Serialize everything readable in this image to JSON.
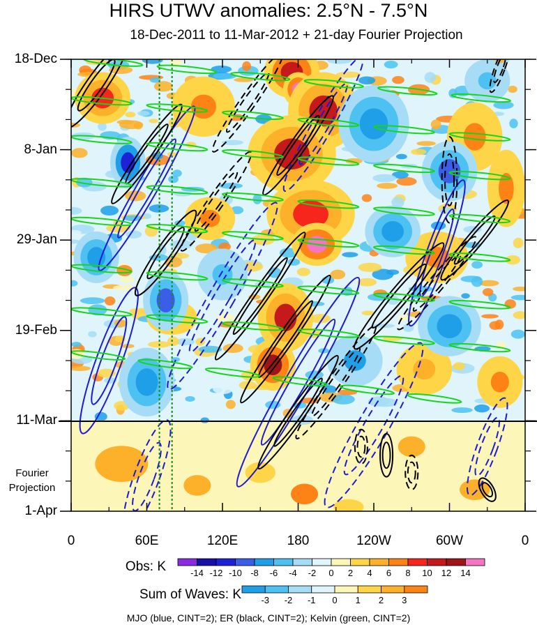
{
  "title": "HIRS UTWV anomalies: 2.5°N - 7.5°N",
  "subtitle": "18-Dec-2011 to 11-Mar-2012 + 21-day Fourier Projection",
  "chart_data": {
    "type": "heatmap",
    "description_axes": "Hovmoller diagram: longitude (x) vs time (y, downward)",
    "x_ticks": [
      {
        "lon": 0,
        "label": "0"
      },
      {
        "lon": 60,
        "label": "60E"
      },
      {
        "lon": 120,
        "label": "120E"
      },
      {
        "lon": 180,
        "label": "180"
      },
      {
        "lon": 240,
        "label": "120W"
      },
      {
        "lon": 300,
        "label": "60W"
      },
      {
        "lon": 360,
        "label": "0"
      }
    ],
    "xlim": [
      0,
      360
    ],
    "y_ticks": [
      {
        "day": 0,
        "label": "18-Dec"
      },
      {
        "day": 21,
        "label": "8-Jan"
      },
      {
        "day": 42,
        "label": "29-Jan"
      },
      {
        "day": 63,
        "label": "19-Feb"
      },
      {
        "day": 84,
        "label": "11-Mar"
      },
      {
        "day": 105,
        "label": "1-Apr"
      }
    ],
    "ylim_days": [
      0,
      105
    ],
    "projection_start_day": 84,
    "projection_label": "Fourier Projection",
    "reference_lon_lines": [
      70,
      80
    ],
    "obs_colorbar": {
      "label": "Obs: K",
      "levels": [
        -14,
        -12,
        -10,
        -8,
        -6,
        -4,
        -2,
        0,
        2,
        4,
        6,
        8,
        10,
        12,
        14
      ],
      "colors": [
        "#8a2be2",
        "#1a0da8",
        "#1e22d6",
        "#3a5ee8",
        "#1e9fe8",
        "#4dc2f2",
        "#a6dcf6",
        "#dff4fb",
        "#fdf6b9",
        "#fed546",
        "#fdb02a",
        "#fe8316",
        "#f7261c",
        "#c5191c",
        "#9e1417",
        "#f575c0"
      ]
    },
    "waves_colorbar": {
      "label": "Sum of Waves: K",
      "levels": [
        -3,
        -2,
        -1,
        0,
        1,
        2,
        3
      ],
      "colors": [
        "#1e9fe8",
        "#4dc2f2",
        "#a6dcf6",
        "#dff4fb",
        "#fdf6b9",
        "#fed546",
        "#fdb02a",
        "#fe8316"
      ]
    },
    "footer_note": "MJO (blue, CINT=2); ER (black, CINT=2); Kelvin (green, CINT=2)",
    "contours": {
      "mjo": {
        "color": "#1b1bd6",
        "cint": 2
      },
      "er": {
        "color": "#000000",
        "cint": 2
      },
      "kelvin": {
        "color": "#17d617",
        "cint": 2
      }
    },
    "blobs_obs": [
      {
        "lon": 175,
        "day": 3,
        "rx": 22,
        "ry": 6,
        "v": 11
      },
      {
        "lon": 180,
        "day": 7,
        "rx": 12,
        "ry": 4,
        "v": 14
      },
      {
        "lon": 200,
        "day": 12,
        "rx": 28,
        "ry": 9,
        "v": 10
      },
      {
        "lon": 175,
        "day": 22,
        "rx": 35,
        "ry": 9,
        "v": 10
      },
      {
        "lon": 190,
        "day": 36,
        "rx": 35,
        "ry": 8,
        "v": 9
      },
      {
        "lon": 195,
        "day": 43,
        "rx": 20,
        "ry": 5,
        "v": 14
      },
      {
        "lon": 170,
        "day": 60,
        "rx": 22,
        "ry": 8,
        "v": 10
      },
      {
        "lon": 160,
        "day": 71,
        "rx": 18,
        "ry": 6,
        "v": 13
      },
      {
        "lon": 25,
        "day": 9,
        "rx": 22,
        "ry": 6,
        "v": 8
      },
      {
        "lon": 105,
        "day": 11,
        "rx": 25,
        "ry": 7,
        "v": 7
      },
      {
        "lon": 320,
        "day": 18,
        "rx": 22,
        "ry": 8,
        "v": 6
      },
      {
        "lon": 345,
        "day": 30,
        "rx": 15,
        "ry": 9,
        "v": 6
      },
      {
        "lon": 290,
        "day": 46,
        "rx": 25,
        "ry": 6,
        "v": 6
      },
      {
        "lon": 110,
        "day": 37,
        "rx": 20,
        "ry": 5,
        "v": 6
      },
      {
        "lon": 80,
        "day": 60,
        "rx": 20,
        "ry": 4,
        "v": 5
      },
      {
        "lon": 280,
        "day": 72,
        "rx": 22,
        "ry": 6,
        "v": 5
      },
      {
        "lon": 340,
        "day": 75,
        "rx": 18,
        "ry": 6,
        "v": 6
      },
      {
        "lon": 45,
        "day": 24,
        "rx": 14,
        "ry": 6,
        "v": -12
      },
      {
        "lon": 75,
        "day": 56,
        "rx": 18,
        "ry": 7,
        "v": -10
      },
      {
        "lon": 60,
        "day": 75,
        "rx": 22,
        "ry": 8,
        "v": -8
      },
      {
        "lon": 240,
        "day": 15,
        "rx": 28,
        "ry": 9,
        "v": -8
      },
      {
        "lon": 300,
        "day": 26,
        "rx": 22,
        "ry": 7,
        "v": -10
      },
      {
        "lon": 255,
        "day": 40,
        "rx": 22,
        "ry": 6,
        "v": -8
      },
      {
        "lon": 20,
        "day": 46,
        "rx": 18,
        "ry": 6,
        "v": -8
      },
      {
        "lon": 300,
        "day": 62,
        "rx": 25,
        "ry": 7,
        "v": -8
      },
      {
        "lon": 225,
        "day": 70,
        "rx": 22,
        "ry": 6,
        "v": -7
      },
      {
        "lon": 120,
        "day": 50,
        "rx": 20,
        "ry": 6,
        "v": -6
      },
      {
        "lon": 330,
        "day": 5,
        "rx": 18,
        "ry": 5,
        "v": -6
      }
    ],
    "blobs_waves": [
      {
        "lon": 40,
        "day": 94,
        "rx": 35,
        "ry": 7,
        "v": 2
      },
      {
        "lon": 100,
        "day": 99,
        "rx": 18,
        "ry": 4,
        "v": 2
      },
      {
        "lon": 185,
        "day": 101,
        "rx": 18,
        "ry": 4,
        "v": 3
      },
      {
        "lon": 270,
        "day": 90,
        "rx": 18,
        "ry": 4,
        "v": 2
      },
      {
        "lon": 320,
        "day": 100,
        "rx": 20,
        "ry": 4,
        "v": 2
      },
      {
        "lon": 150,
        "day": 96,
        "rx": 20,
        "ry": 4,
        "v": 1
      },
      {
        "lon": 220,
        "day": 104,
        "rx": 20,
        "ry": 3,
        "v": 1
      }
    ],
    "kelvin_lines": [
      {
        "lon0": 10,
        "day0": 0,
        "lon1": 360,
        "day1": 10
      },
      {
        "lon0": 0,
        "day0": 9,
        "lon1": 360,
        "day1": 19
      },
      {
        "lon0": 0,
        "day0": 18,
        "lon1": 360,
        "day1": 28
      },
      {
        "lon0": 0,
        "day0": 28,
        "lon1": 360,
        "day1": 38
      },
      {
        "lon0": 0,
        "day0": 37,
        "lon1": 360,
        "day1": 47
      },
      {
        "lon0": 0,
        "day0": 48,
        "lon1": 360,
        "day1": 58
      },
      {
        "lon0": 0,
        "day0": 58,
        "lon1": 360,
        "day1": 68
      },
      {
        "lon0": 0,
        "day0": 68,
        "lon1": 320,
        "day1": 80
      }
    ],
    "er_ellipses": [
      {
        "lon": 20,
        "day": 6,
        "rx": 8,
        "ry": 12,
        "rot": 35,
        "dash": false
      },
      {
        "lon": 60,
        "day": 22,
        "rx": 6,
        "ry": 14,
        "rot": 35,
        "dash": false
      },
      {
        "lon": 75,
        "day": 45,
        "rx": 7,
        "ry": 12,
        "rot": 35,
        "dash": false
      },
      {
        "lon": 115,
        "day": 33,
        "rx": 6,
        "ry": 14,
        "rot": 35,
        "dash": true
      },
      {
        "lon": 150,
        "day": 55,
        "rx": 6,
        "ry": 18,
        "rot": 35,
        "dash": false
      },
      {
        "lon": 170,
        "day": 65,
        "rx": 6,
        "ry": 18,
        "rot": 35,
        "dash": false
      },
      {
        "lon": 180,
        "day": 82,
        "rx": 6,
        "ry": 16,
        "rot": 35,
        "dash": false
      },
      {
        "lon": 210,
        "day": 75,
        "rx": 6,
        "ry": 16,
        "rot": 35,
        "dash": true
      },
      {
        "lon": 180,
        "day": 20,
        "rx": 6,
        "ry": 14,
        "rot": 35,
        "dash": false
      },
      {
        "lon": 140,
        "day": 10,
        "rx": 6,
        "ry": 14,
        "rot": 35,
        "dash": true
      },
      {
        "lon": 260,
        "day": 55,
        "rx": 7,
        "ry": 16,
        "rot": 40,
        "dash": false
      },
      {
        "lon": 290,
        "day": 52,
        "rx": 6,
        "ry": 14,
        "rot": 40,
        "dash": true
      },
      {
        "lon": 320,
        "day": 42,
        "rx": 6,
        "ry": 12,
        "rot": 40,
        "dash": false
      },
      {
        "lon": 300,
        "day": 28,
        "rx": 6,
        "ry": 10,
        "rot": 0,
        "dash": true
      },
      {
        "lon": 250,
        "day": 92,
        "rx": 5,
        "ry": 5,
        "rot": 0,
        "dash": false
      },
      {
        "lon": 270,
        "day": 96,
        "rx": 5,
        "ry": 4,
        "rot": 0,
        "dash": true
      },
      {
        "lon": 330,
        "day": 100,
        "rx": 5,
        "ry": 3,
        "rot": -30,
        "dash": false
      },
      {
        "lon": 230,
        "day": 90,
        "rx": 5,
        "ry": 4,
        "rot": 0,
        "dash": true
      },
      {
        "lon": 340,
        "day": 2,
        "rx": 4,
        "ry": 6,
        "rot": 20,
        "dash": true
      }
    ],
    "mjo_ellipses": [
      {
        "lon": 60,
        "day": 30,
        "rx": 8,
        "ry": 22,
        "rot": 30,
        "dash": false
      },
      {
        "lon": 120,
        "day": 55,
        "rx": 10,
        "ry": 25,
        "rot": 30,
        "dash": true
      },
      {
        "lon": 180,
        "day": 75,
        "rx": 10,
        "ry": 28,
        "rot": 30,
        "dash": false
      },
      {
        "lon": 240,
        "day": 85,
        "rx": 12,
        "ry": 22,
        "rot": 30,
        "dash": true
      },
      {
        "lon": 290,
        "day": 45,
        "rx": 8,
        "ry": 18,
        "rot": 20,
        "dash": false
      },
      {
        "lon": 30,
        "day": 70,
        "rx": 10,
        "ry": 18,
        "rot": 20,
        "dash": false
      },
      {
        "lon": 60,
        "day": 97,
        "rx": 10,
        "ry": 14,
        "rot": 20,
        "dash": true
      },
      {
        "lon": 330,
        "day": 90,
        "rx": 8,
        "ry": 12,
        "rot": 20,
        "dash": true
      },
      {
        "lon": 200,
        "day": 15,
        "rx": 8,
        "ry": 18,
        "rot": 30,
        "dash": true
      }
    ]
  }
}
